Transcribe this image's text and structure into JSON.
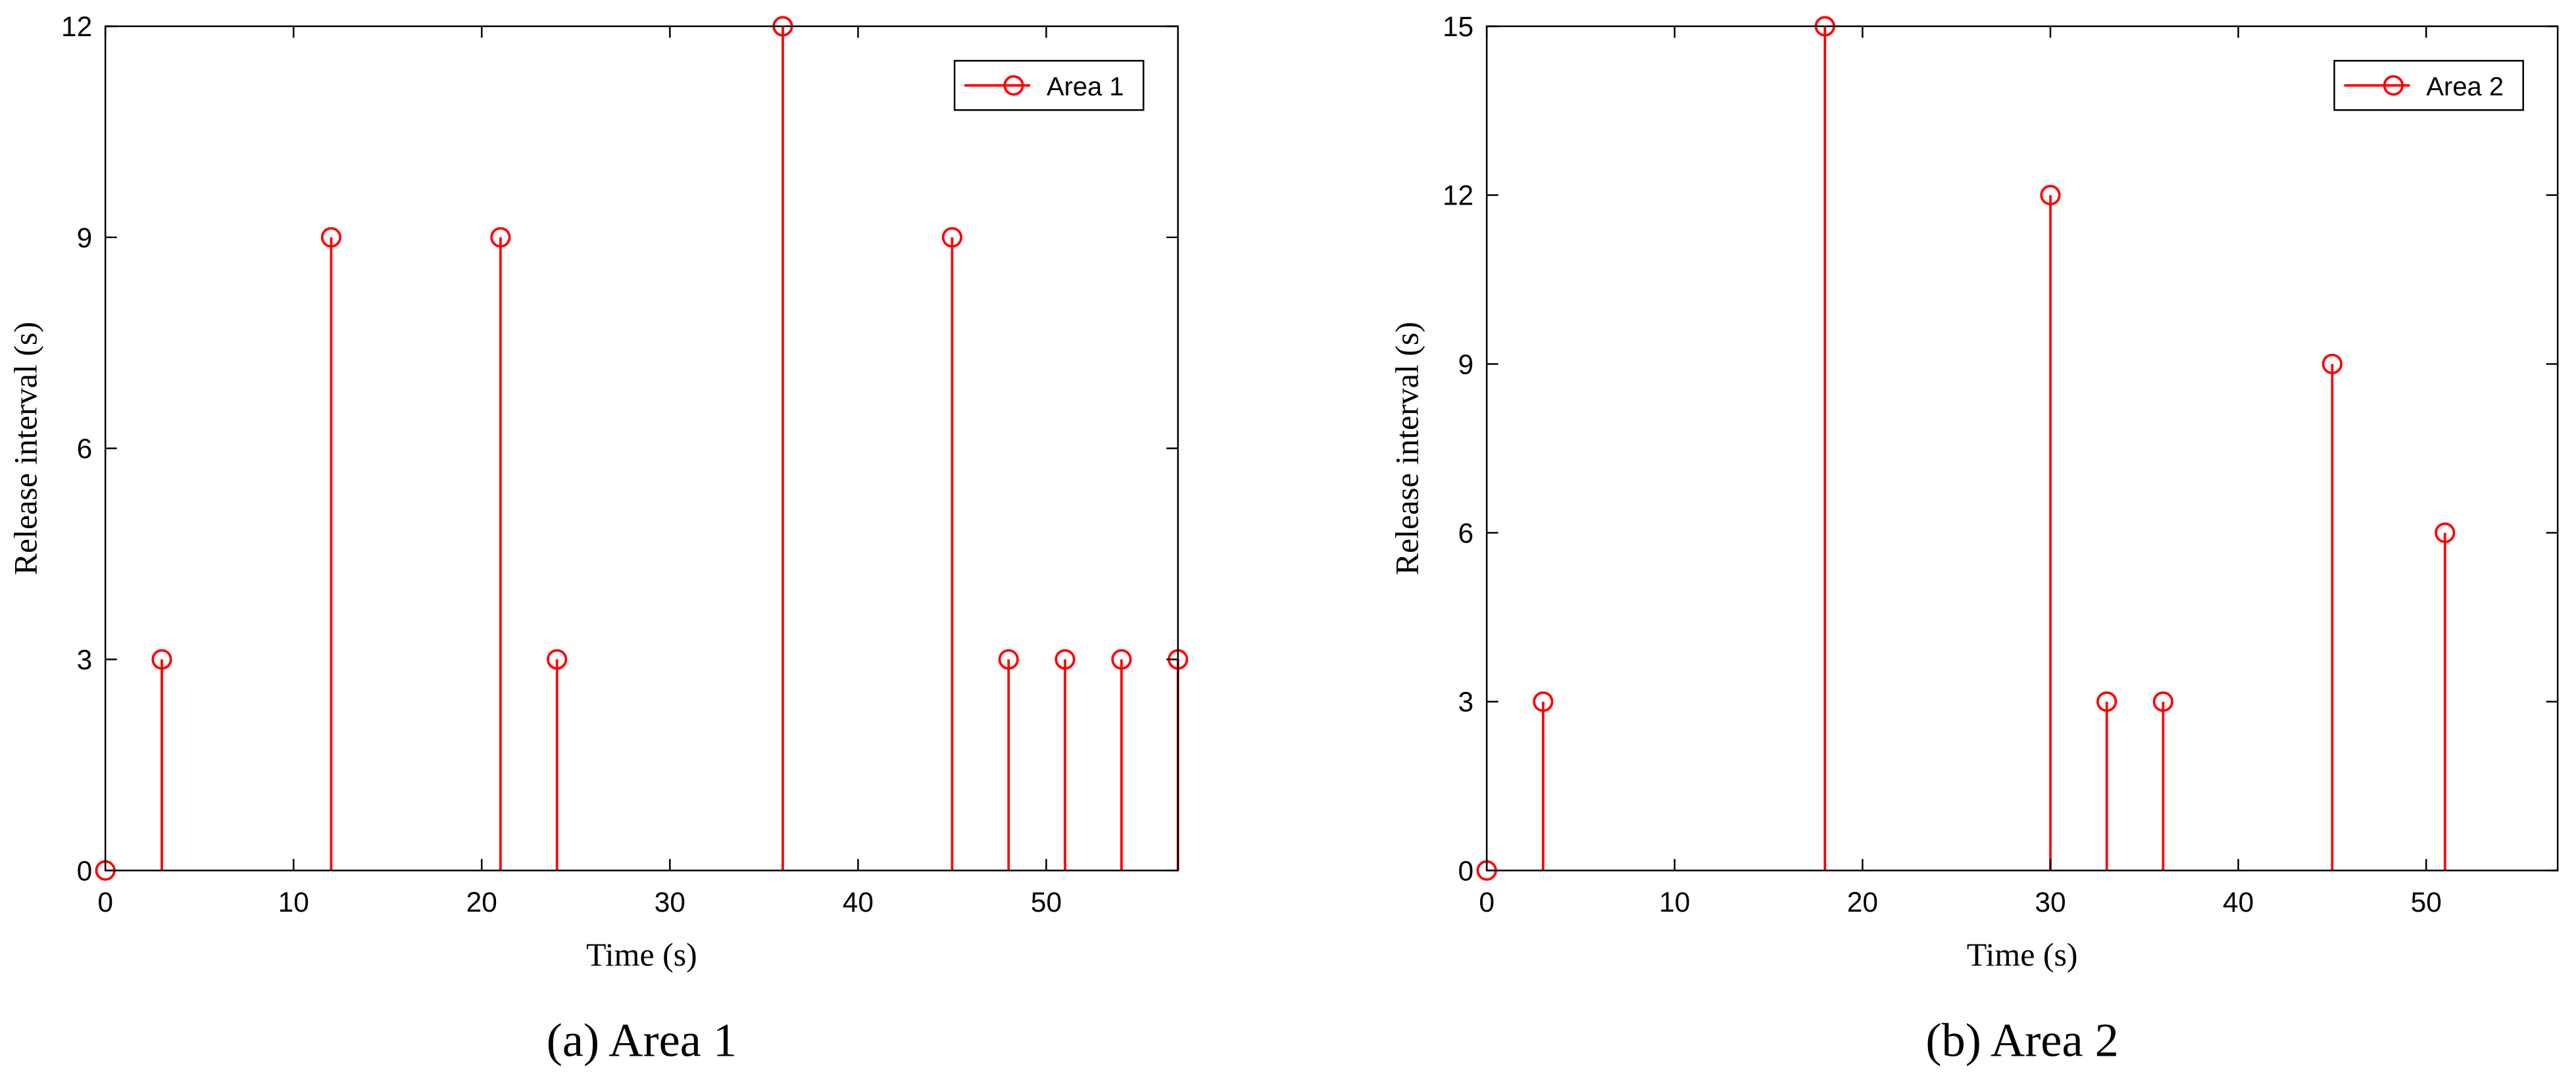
{
  "chart_data": [
    {
      "type": "stem",
      "caption": "(a) Area 1",
      "xlabel": "Time (s)",
      "ylabel": "Release interval (s)",
      "series": [
        {
          "name": "Area 1",
          "color": "#ff0000",
          "x": [
            0,
            3,
            12,
            21,
            24,
            36,
            45,
            48,
            51,
            54,
            57
          ],
          "values": [
            0,
            3,
            9,
            9,
            3,
            12,
            9,
            3,
            3,
            3,
            3
          ]
        }
      ],
      "xlim": [
        0,
        57
      ],
      "xticks": [
        0,
        10,
        20,
        30,
        40,
        50
      ],
      "ylim": [
        0,
        12
      ],
      "yticks": [
        0,
        3,
        6,
        9,
        12
      ],
      "legend": "upper right",
      "grid": false
    },
    {
      "type": "stem",
      "caption": "(b) Area 2",
      "xlabel": "Time (s)",
      "ylabel": "Release interval (s)",
      "series": [
        {
          "name": "Area 2",
          "color": "#ff0000",
          "x": [
            0,
            3,
            18,
            30,
            33,
            36,
            45,
            51
          ],
          "values": [
            0,
            3,
            15,
            12,
            3,
            3,
            9,
            6
          ]
        }
      ],
      "xlim": [
        0,
        57
      ],
      "xticks": [
        0,
        10,
        20,
        30,
        40,
        50
      ],
      "ylim": [
        0,
        15
      ],
      "yticks": [
        0,
        3,
        6,
        9,
        12,
        15
      ],
      "legend": "upper right",
      "grid": false
    }
  ]
}
